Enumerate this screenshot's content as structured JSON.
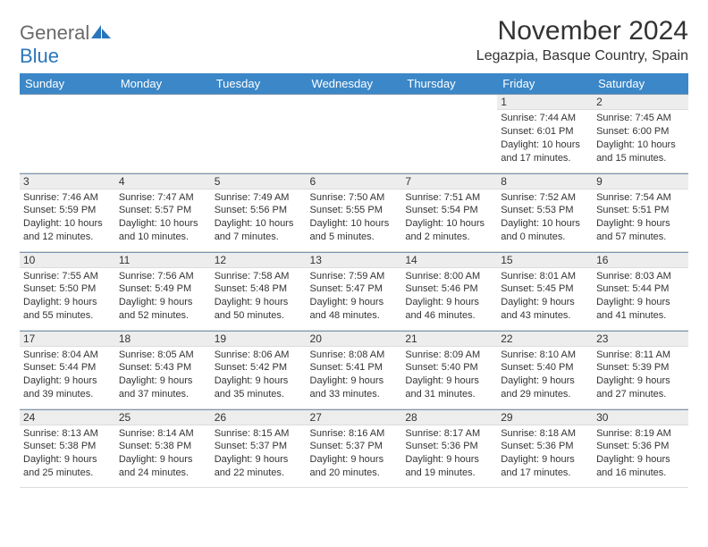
{
  "logo": {
    "gray": "General",
    "blue": "Blue"
  },
  "title": "November 2024",
  "location": "Legazpia, Basque Country, Spain",
  "colors": {
    "header_bg": "#3b87c8",
    "header_text": "#ffffff",
    "daynum_bg": "#ededed",
    "row_border": "#7a95b0",
    "logo_gray": "#6a6a6a",
    "logo_blue": "#2a76bb",
    "text": "#333333"
  },
  "day_headers": [
    "Sunday",
    "Monday",
    "Tuesday",
    "Wednesday",
    "Thursday",
    "Friday",
    "Saturday"
  ],
  "weeks": [
    [
      {
        "n": "",
        "lines": []
      },
      {
        "n": "",
        "lines": []
      },
      {
        "n": "",
        "lines": []
      },
      {
        "n": "",
        "lines": []
      },
      {
        "n": "",
        "lines": []
      },
      {
        "n": "1",
        "lines": [
          "Sunrise: 7:44 AM",
          "Sunset: 6:01 PM",
          "Daylight: 10 hours",
          "and 17 minutes."
        ]
      },
      {
        "n": "2",
        "lines": [
          "Sunrise: 7:45 AM",
          "Sunset: 6:00 PM",
          "Daylight: 10 hours",
          "and 15 minutes."
        ]
      }
    ],
    [
      {
        "n": "3",
        "lines": [
          "Sunrise: 7:46 AM",
          "Sunset: 5:59 PM",
          "Daylight: 10 hours",
          "and 12 minutes."
        ]
      },
      {
        "n": "4",
        "lines": [
          "Sunrise: 7:47 AM",
          "Sunset: 5:57 PM",
          "Daylight: 10 hours",
          "and 10 minutes."
        ]
      },
      {
        "n": "5",
        "lines": [
          "Sunrise: 7:49 AM",
          "Sunset: 5:56 PM",
          "Daylight: 10 hours",
          "and 7 minutes."
        ]
      },
      {
        "n": "6",
        "lines": [
          "Sunrise: 7:50 AM",
          "Sunset: 5:55 PM",
          "Daylight: 10 hours",
          "and 5 minutes."
        ]
      },
      {
        "n": "7",
        "lines": [
          "Sunrise: 7:51 AM",
          "Sunset: 5:54 PM",
          "Daylight: 10 hours",
          "and 2 minutes."
        ]
      },
      {
        "n": "8",
        "lines": [
          "Sunrise: 7:52 AM",
          "Sunset: 5:53 PM",
          "Daylight: 10 hours",
          "and 0 minutes."
        ]
      },
      {
        "n": "9",
        "lines": [
          "Sunrise: 7:54 AM",
          "Sunset: 5:51 PM",
          "Daylight: 9 hours",
          "and 57 minutes."
        ]
      }
    ],
    [
      {
        "n": "10",
        "lines": [
          "Sunrise: 7:55 AM",
          "Sunset: 5:50 PM",
          "Daylight: 9 hours",
          "and 55 minutes."
        ]
      },
      {
        "n": "11",
        "lines": [
          "Sunrise: 7:56 AM",
          "Sunset: 5:49 PM",
          "Daylight: 9 hours",
          "and 52 minutes."
        ]
      },
      {
        "n": "12",
        "lines": [
          "Sunrise: 7:58 AM",
          "Sunset: 5:48 PM",
          "Daylight: 9 hours",
          "and 50 minutes."
        ]
      },
      {
        "n": "13",
        "lines": [
          "Sunrise: 7:59 AM",
          "Sunset: 5:47 PM",
          "Daylight: 9 hours",
          "and 48 minutes."
        ]
      },
      {
        "n": "14",
        "lines": [
          "Sunrise: 8:00 AM",
          "Sunset: 5:46 PM",
          "Daylight: 9 hours",
          "and 46 minutes."
        ]
      },
      {
        "n": "15",
        "lines": [
          "Sunrise: 8:01 AM",
          "Sunset: 5:45 PM",
          "Daylight: 9 hours",
          "and 43 minutes."
        ]
      },
      {
        "n": "16",
        "lines": [
          "Sunrise: 8:03 AM",
          "Sunset: 5:44 PM",
          "Daylight: 9 hours",
          "and 41 minutes."
        ]
      }
    ],
    [
      {
        "n": "17",
        "lines": [
          "Sunrise: 8:04 AM",
          "Sunset: 5:44 PM",
          "Daylight: 9 hours",
          "and 39 minutes."
        ]
      },
      {
        "n": "18",
        "lines": [
          "Sunrise: 8:05 AM",
          "Sunset: 5:43 PM",
          "Daylight: 9 hours",
          "and 37 minutes."
        ]
      },
      {
        "n": "19",
        "lines": [
          "Sunrise: 8:06 AM",
          "Sunset: 5:42 PM",
          "Daylight: 9 hours",
          "and 35 minutes."
        ]
      },
      {
        "n": "20",
        "lines": [
          "Sunrise: 8:08 AM",
          "Sunset: 5:41 PM",
          "Daylight: 9 hours",
          "and 33 minutes."
        ]
      },
      {
        "n": "21",
        "lines": [
          "Sunrise: 8:09 AM",
          "Sunset: 5:40 PM",
          "Daylight: 9 hours",
          "and 31 minutes."
        ]
      },
      {
        "n": "22",
        "lines": [
          "Sunrise: 8:10 AM",
          "Sunset: 5:40 PM",
          "Daylight: 9 hours",
          "and 29 minutes."
        ]
      },
      {
        "n": "23",
        "lines": [
          "Sunrise: 8:11 AM",
          "Sunset: 5:39 PM",
          "Daylight: 9 hours",
          "and 27 minutes."
        ]
      }
    ],
    [
      {
        "n": "24",
        "lines": [
          "Sunrise: 8:13 AM",
          "Sunset: 5:38 PM",
          "Daylight: 9 hours",
          "and 25 minutes."
        ]
      },
      {
        "n": "25",
        "lines": [
          "Sunrise: 8:14 AM",
          "Sunset: 5:38 PM",
          "Daylight: 9 hours",
          "and 24 minutes."
        ]
      },
      {
        "n": "26",
        "lines": [
          "Sunrise: 8:15 AM",
          "Sunset: 5:37 PM",
          "Daylight: 9 hours",
          "and 22 minutes."
        ]
      },
      {
        "n": "27",
        "lines": [
          "Sunrise: 8:16 AM",
          "Sunset: 5:37 PM",
          "Daylight: 9 hours",
          "and 20 minutes."
        ]
      },
      {
        "n": "28",
        "lines": [
          "Sunrise: 8:17 AM",
          "Sunset: 5:36 PM",
          "Daylight: 9 hours",
          "and 19 minutes."
        ]
      },
      {
        "n": "29",
        "lines": [
          "Sunrise: 8:18 AM",
          "Sunset: 5:36 PM",
          "Daylight: 9 hours",
          "and 17 minutes."
        ]
      },
      {
        "n": "30",
        "lines": [
          "Sunrise: 8:19 AM",
          "Sunset: 5:36 PM",
          "Daylight: 9 hours",
          "and 16 minutes."
        ]
      }
    ]
  ]
}
